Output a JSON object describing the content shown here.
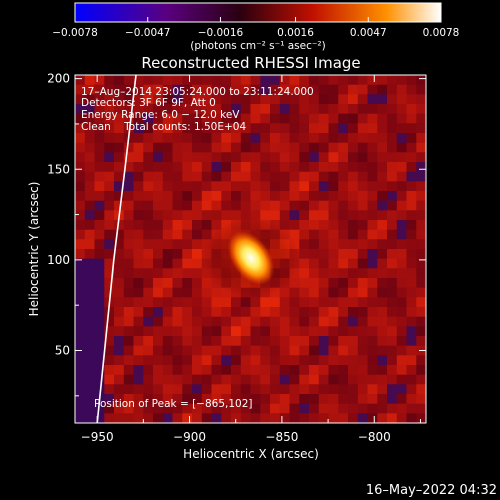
{
  "chart_data": {
    "type": "heatmap",
    "title": "Reconstructed RHESSI Image",
    "xlabel": "Heliocentric X (arcsec)",
    "ylabel": "Heliocentric Y (arcsec)",
    "xlim": [
      -962,
      -772
    ],
    "ylim": [
      10,
      202
    ],
    "x_ticks": [
      -950,
      -900,
      -850,
      -800
    ],
    "x_tick_labels": [
      "−950",
      "−900",
      "−850",
      "−800"
    ],
    "y_ticks": [
      50,
      100,
      150,
      200
    ],
    "y_tick_labels": [
      "50",
      "100",
      "150",
      "200"
    ],
    "colorbar": {
      "range": [
        -0.0078,
        0.0078
      ],
      "ticks": [
        -0.0078,
        -0.0047,
        -0.0016,
        0.0016,
        0.0047,
        0.0078
      ],
      "tick_labels": [
        "−0.0078",
        "−0.0047",
        "−0.0016",
        "0.0016",
        "0.0047",
        "0.0078"
      ],
      "units_label": "(photons cm⁻² s⁻¹ asec⁻²)",
      "colormap": "blue-purple-red-yellow-white"
    },
    "annotations": {
      "date_range": "17–Aug–2014 23:05:24.000 to 23:11:24.000",
      "detectors": "Detectors: 3F 6F 9F, Att 0",
      "energy_range": "Energy Range: 6.0 − 12.0 keV",
      "method_counts": "Clean    Total counts: 1.50E+04",
      "peak_position": "Position of Peak = [−865,102]"
    },
    "peak": {
      "x": -865,
      "y": 102
    },
    "limb_curve": [
      [
        -929,
        202
      ],
      [
        -935,
        150
      ],
      [
        -941,
        100
      ],
      [
        -946,
        50
      ],
      [
        -950,
        10
      ]
    ],
    "footer_timestamp": "16–May–2022 04:32"
  },
  "colors": {
    "background": "#000000",
    "text": "#ffffff",
    "colormap_stops": [
      "#0000ff",
      "#5a0080",
      "#2a0010",
      "#c01000",
      "#ff9000",
      "#ffffff"
    ]
  }
}
